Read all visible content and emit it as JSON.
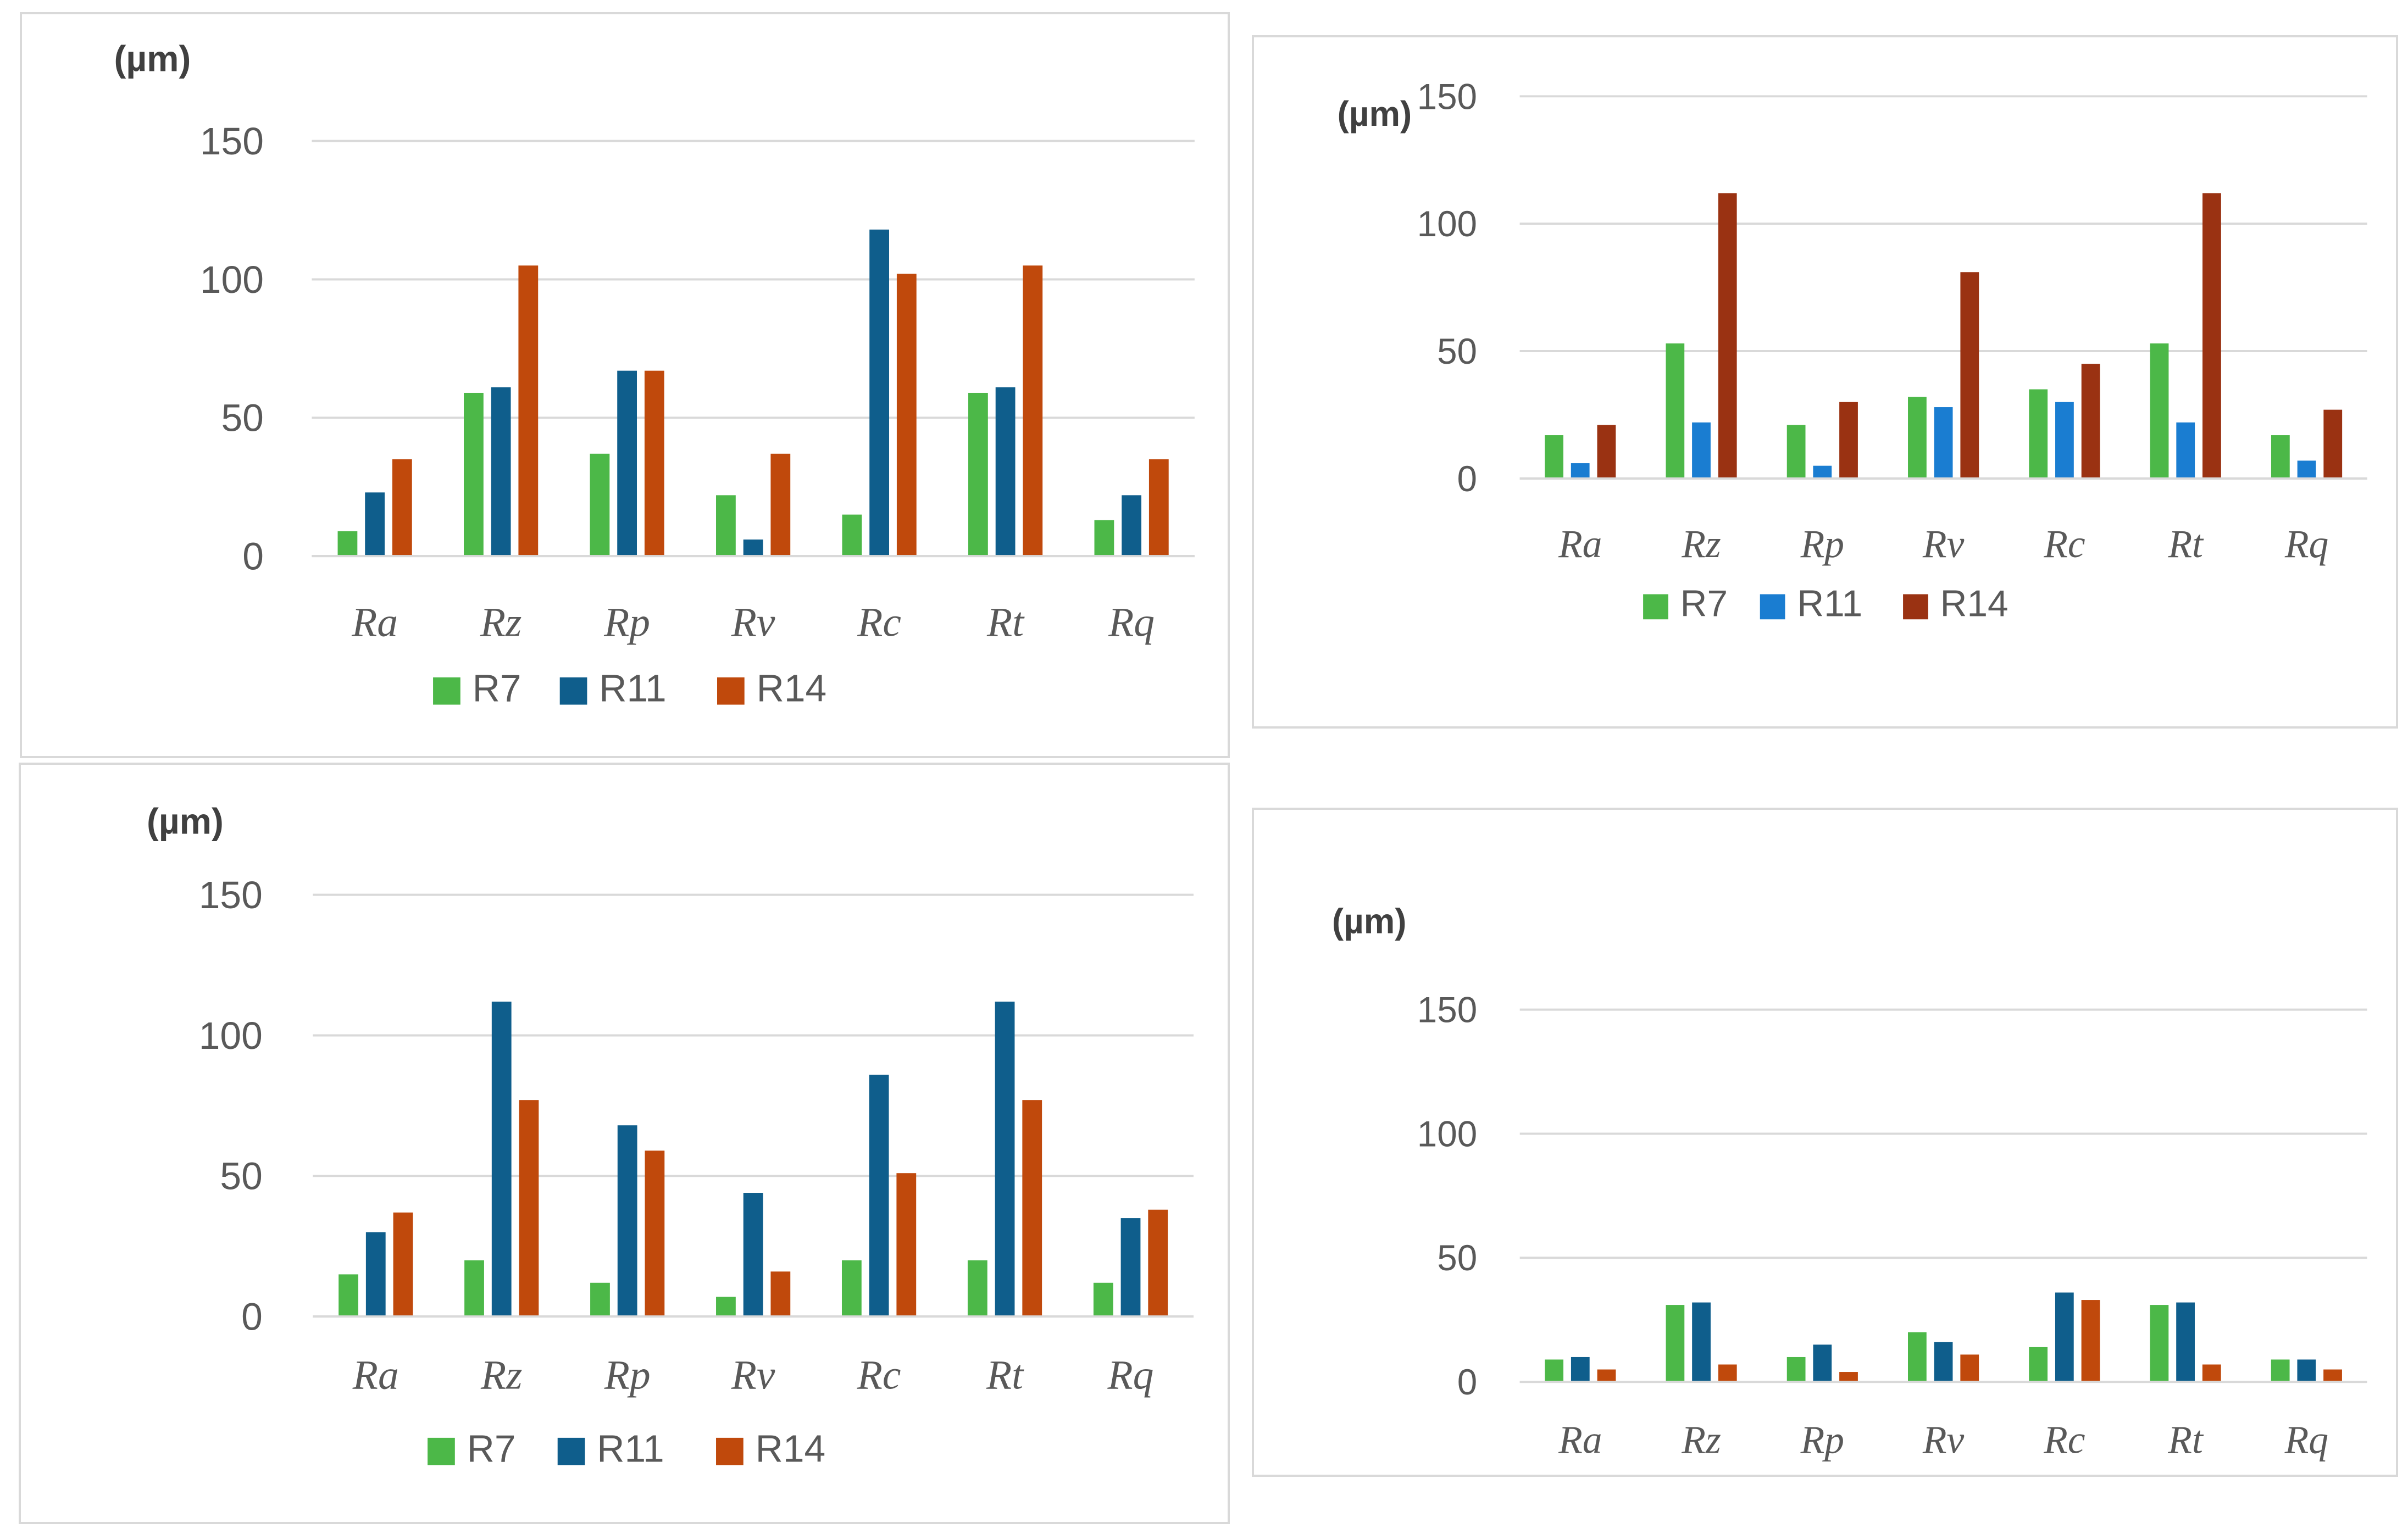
{
  "chart_data": [
    {
      "type": "bar",
      "unit_label": "(µm)",
      "categories": [
        "Ra",
        "Rz",
        "Rp",
        "Rv",
        "Rc",
        "Rt",
        "Rq"
      ],
      "ylim": [
        0,
        150
      ],
      "yticks": [
        "0",
        "50",
        "100",
        "150"
      ],
      "grid": true,
      "legend": "bottom",
      "series": [
        {
          "name": "R7",
          "color": "#4cb848",
          "values": [
            9,
            59,
            37,
            22,
            15,
            59,
            13
          ]
        },
        {
          "name": "R11",
          "color": "#0f5e8c",
          "values": [
            23,
            61,
            67,
            6,
            118,
            61,
            22
          ]
        },
        {
          "name": "R14",
          "color": "#c0490c",
          "values": [
            35,
            105,
            67,
            37,
            102,
            105,
            35
          ]
        }
      ]
    },
    {
      "type": "bar",
      "unit_label": "(µm)",
      "categories": [
        "Ra",
        "Rz",
        "Rp",
        "Rv",
        "Rc",
        "Rt",
        "Rq"
      ],
      "ylim": [
        0,
        150
      ],
      "yticks": [
        "0",
        "50",
        "100",
        "150"
      ],
      "grid": true,
      "legend": "bottom",
      "series": [
        {
          "name": "R7",
          "color": "#4cb848",
          "values": [
            17,
            53,
            21,
            32,
            35,
            53,
            17
          ]
        },
        {
          "name": "R11",
          "color": "#1a7dd1",
          "values": [
            6,
            22,
            5,
            28,
            30,
            22,
            7
          ]
        },
        {
          "name": "R14",
          "color": "#9a3212",
          "values": [
            21,
            112,
            30,
            81,
            45,
            112,
            27
          ]
        }
      ]
    },
    {
      "type": "bar",
      "unit_label": "(µm)",
      "categories": [
        "Ra",
        "Rz",
        "Rp",
        "Rv",
        "Rc",
        "Rt",
        "Rq"
      ],
      "ylim": [
        0,
        150
      ],
      "yticks": [
        "0",
        "50",
        "100",
        "150"
      ],
      "grid": true,
      "legend": "bottom",
      "series": [
        {
          "name": "R7",
          "color": "#4cb848",
          "values": [
            15,
            20,
            12,
            7,
            20,
            20,
            12
          ]
        },
        {
          "name": "R11",
          "color": "#0f5e8c",
          "values": [
            30,
            112,
            68,
            44,
            86,
            112,
            35
          ]
        },
        {
          "name": "R14",
          "color": "#c0490c",
          "values": [
            37,
            77,
            59,
            16,
            51,
            77,
            38
          ]
        }
      ]
    },
    {
      "type": "bar",
      "unit_label": "(µm)",
      "categories": [
        "Ra",
        "Rz",
        "Rp",
        "Rv",
        "Rc",
        "Rt",
        "Rq"
      ],
      "ylim": [
        0,
        150
      ],
      "yticks": [
        "0",
        "50",
        "100",
        "150"
      ],
      "grid": true,
      "legend": "bottom",
      "series": [
        {
          "name": "R7",
          "color": "#4cb848",
          "values": [
            9,
            31,
            10,
            20,
            14,
            31,
            9
          ]
        },
        {
          "name": "R11",
          "color": "#0f5e8c",
          "values": [
            10,
            32,
            15,
            16,
            36,
            32,
            9
          ]
        },
        {
          "name": "R14",
          "color": "#c0490c",
          "values": [
            5,
            7,
            4,
            11,
            33,
            7,
            5
          ]
        }
      ]
    }
  ]
}
